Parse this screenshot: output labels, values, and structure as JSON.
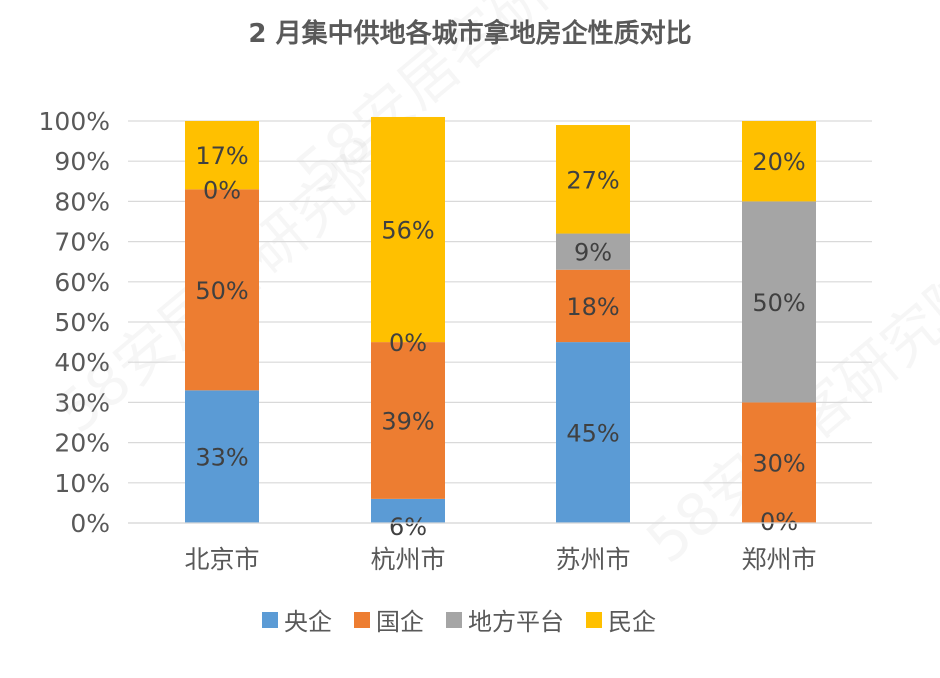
{
  "chart_data": {
    "type": "bar",
    "stacked": true,
    "title": "2 月集中供地各城市拿地房企性质对比",
    "xlabel": "",
    "ylabel": "",
    "ylim": [
      0,
      100
    ],
    "y_ticks": [
      "0%",
      "10%",
      "20%",
      "30%",
      "40%",
      "50%",
      "60%",
      "70%",
      "80%",
      "90%",
      "100%"
    ],
    "grid": true,
    "legend_position": "bottom",
    "categories": [
      "北京市",
      "杭州市",
      "苏州市",
      "郑州市"
    ],
    "series": [
      {
        "name": "央企",
        "color": "#5B9BD5",
        "values": [
          33,
          6,
          45,
          0
        ],
        "labels": [
          "33%",
          "6%",
          "45%",
          ""
        ]
      },
      {
        "name": "国企",
        "color": "#ED7D31",
        "values": [
          50,
          39,
          18,
          30
        ],
        "labels": [
          "50%",
          "39%",
          "18%",
          "30%"
        ]
      },
      {
        "name": "地方平台",
        "color": "#A5A5A5",
        "values": [
          0,
          0,
          9,
          50
        ],
        "labels": [
          "0%",
          "0%",
          "9%",
          "50%"
        ]
      },
      {
        "name": "民企",
        "color": "#FFC000",
        "values": [
          17,
          56,
          27,
          20
        ],
        "labels": [
          "17%",
          "56%",
          "27%",
          "20%"
        ]
      }
    ],
    "extra_labels": [
      {
        "category": "郑州市",
        "text": "0%"
      }
    ],
    "watermark": "58安居客研究院"
  }
}
